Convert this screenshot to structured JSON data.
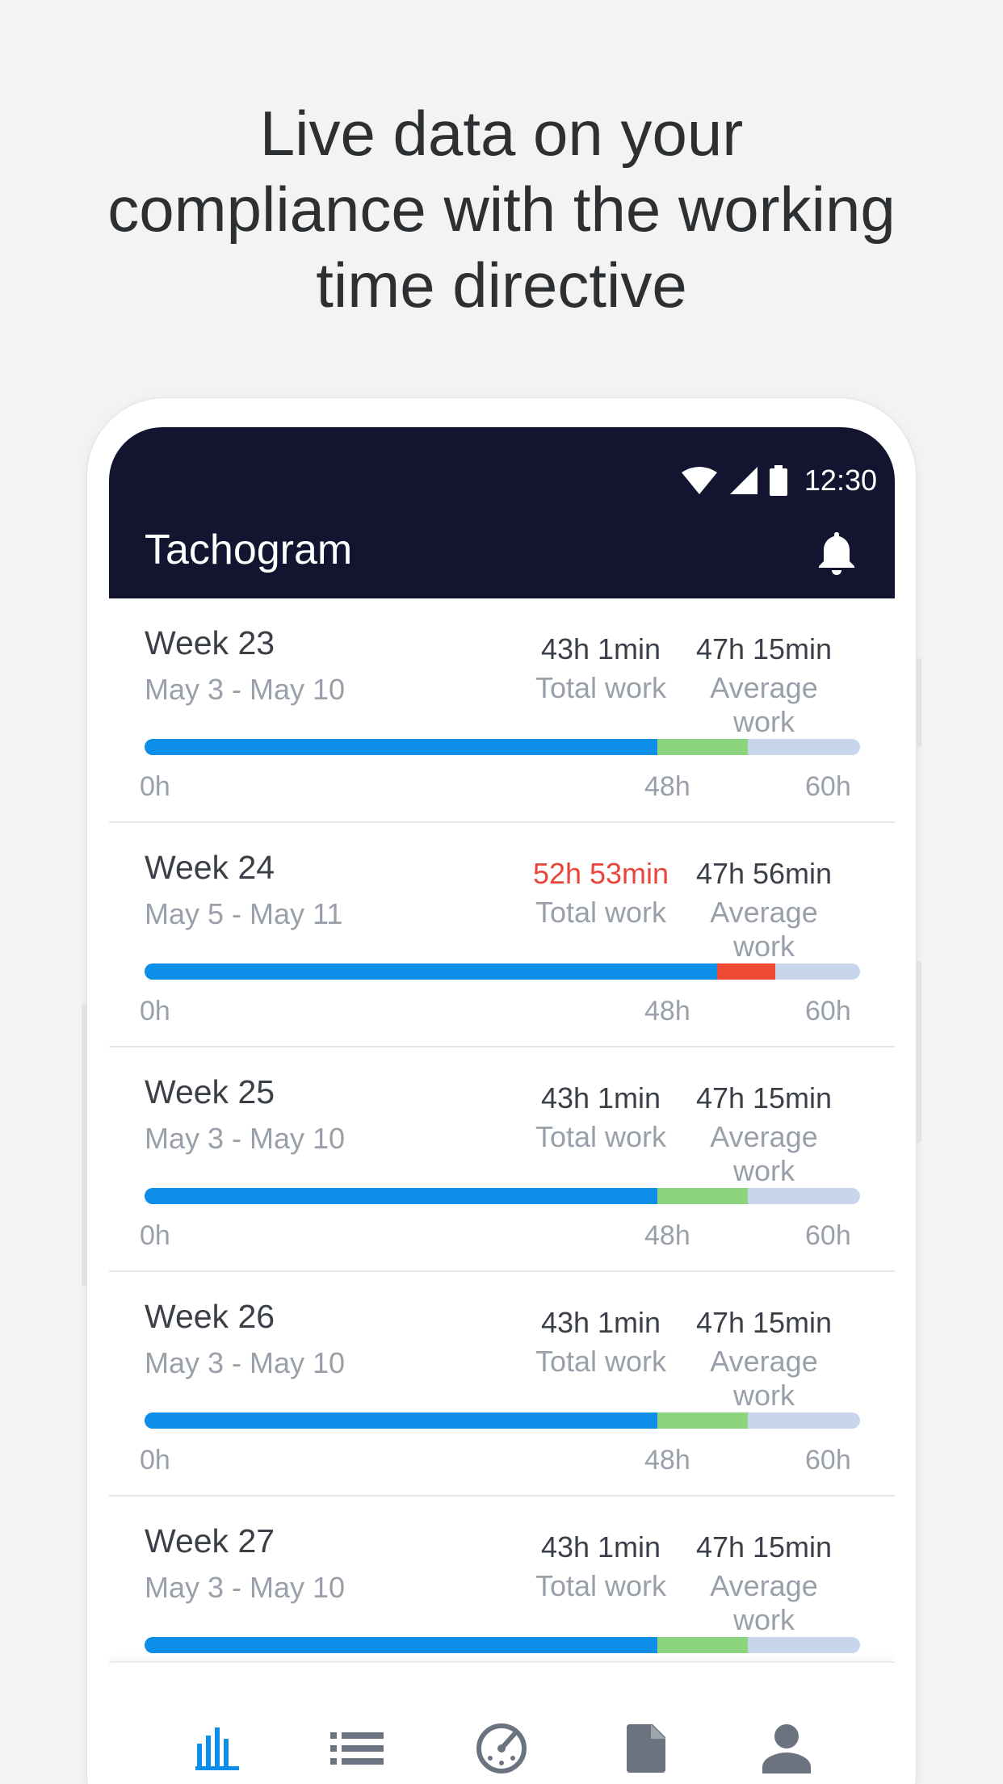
{
  "headline": {
    "line1": "Live data on your",
    "line2": "compliance with the working",
    "line3": "time directive"
  },
  "status_bar": {
    "time": "12:30",
    "icons": [
      "wifi-icon",
      "signal-icon",
      "battery-icon"
    ]
  },
  "app_bar": {
    "title": "Tachogram",
    "action_icon": "bell-icon"
  },
  "colors": {
    "app_bar_bg": "#121430",
    "work_blue": "#0d8ee8",
    "margin_green": "#8ad57e",
    "over_red": "#f04a35",
    "remaining": "#c8d6eb",
    "nav_active": "#0d8ee8",
    "nav_inactive": "#6b7380"
  },
  "scale": {
    "min_hours": 60,
    "ticks": [
      "0h",
      "48h",
      "60h"
    ],
    "tick_hours": [
      0,
      48,
      60
    ]
  },
  "weeks": [
    {
      "title": "Week 23",
      "dates": "May 3 - May 10",
      "total": "43h 1min",
      "total_label": "Total work",
      "average": "47h 15min",
      "average_label": "Average work",
      "total_hours": 43.0,
      "average_hours": 47.25,
      "over": false
    },
    {
      "title": "Week 24",
      "dates": "May 5 - May 11",
      "total": "52h 53min",
      "total_label": "Total work",
      "average": "47h 56min",
      "average_label": "Average work",
      "total_hours": 52.88,
      "average_hours": 47.93,
      "over": true
    },
    {
      "title": "Week 25",
      "dates": "May 3 - May 10",
      "total": "43h 1min",
      "total_label": "Total work",
      "average": "47h 15min",
      "average_label": "Average work",
      "total_hours": 43.0,
      "average_hours": 47.25,
      "over": false
    },
    {
      "title": "Week 26",
      "dates": "May 3 - May 10",
      "total": "43h 1min",
      "total_label": "Total work",
      "average": "47h 15min",
      "average_label": "Average work",
      "total_hours": 43.0,
      "average_hours": 47.25,
      "over": false
    },
    {
      "title": "Week 27",
      "dates": "May 3 - May 10",
      "total": "43h 1min",
      "total_label": "Total work",
      "average": "47h 15min",
      "average_label": "Average work",
      "total_hours": 43.0,
      "average_hours": 47.25,
      "over": false
    }
  ],
  "bottom_nav": [
    {
      "icon": "bar-chart-icon",
      "active": true
    },
    {
      "icon": "list-icon",
      "active": false
    },
    {
      "icon": "speedometer-icon",
      "active": false
    },
    {
      "icon": "document-icon",
      "active": false
    },
    {
      "icon": "person-icon",
      "active": false
    }
  ]
}
